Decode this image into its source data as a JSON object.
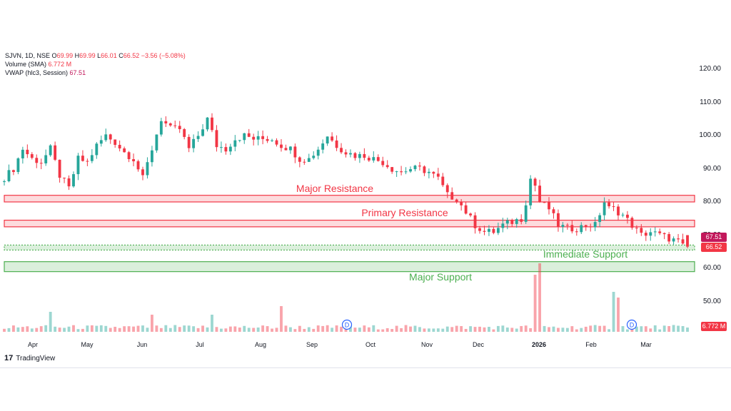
{
  "legend": {
    "symbol": "SJVN, 1D, NSE",
    "o_label": "O",
    "o": "69.99",
    "h_label": "H",
    "h": "69.99",
    "l_label": "L",
    "l": "66.01",
    "c_label": "C",
    "c": "66.52",
    "change": "−3.56 (−5.08%)",
    "volume_label": "Volume (SMA)",
    "volume_value": "6.772 M",
    "vwap_label": "VWAP (hlc3, Session)",
    "vwap_value": "67.51"
  },
  "price_tags": {
    "vwap": "67.51",
    "close": "66.52",
    "volume": "6.772 M"
  },
  "annotations": {
    "major_resistance": "Major Resistance",
    "primary_resistance": "Primary Resistance",
    "immediate_support": "Immediate Support",
    "major_support": "Major Support"
  },
  "events": {
    "dividend_marker": "D"
  },
  "brand": {
    "name": "TradingView",
    "logo_text": "17"
  },
  "colors": {
    "up": "#26a69a",
    "down": "#f23645",
    "resistance": "#f23645",
    "support": "#4caf50"
  },
  "chart_data": {
    "type": "candlestick",
    "y_ticks": [
      "120.00",
      "110.00",
      "100.00",
      "90.00",
      "80.00",
      "70.00",
      "60.00",
      "50.00"
    ],
    "x_ticks": [
      "Apr",
      "May",
      "Jun",
      "Jul",
      "Aug",
      "Sep",
      "Oct",
      "Nov",
      "Dec",
      "2026",
      "Feb",
      "Mar"
    ],
    "ylim": [
      45,
      124
    ],
    "price_path": [
      [
        0,
        86
      ],
      [
        3,
        90
      ],
      [
        5,
        96
      ],
      [
        7,
        93
      ],
      [
        9,
        92
      ],
      [
        11,
        96
      ],
      [
        13,
        88
      ],
      [
        15,
        84
      ],
      [
        17,
        93
      ],
      [
        19,
        92
      ],
      [
        21,
        97
      ],
      [
        23,
        100
      ],
      [
        25,
        98
      ],
      [
        27,
        95
      ],
      [
        29,
        93
      ],
      [
        31,
        87
      ],
      [
        33,
        96
      ],
      [
        35,
        105
      ],
      [
        37,
        102
      ],
      [
        39,
        102
      ],
      [
        41,
        96
      ],
      [
        43,
        100
      ],
      [
        45,
        105
      ],
      [
        47,
        97
      ],
      [
        49,
        96
      ],
      [
        51,
        99
      ],
      [
        53,
        100
      ],
      [
        55,
        99
      ],
      [
        57,
        99
      ],
      [
        59,
        99
      ],
      [
        61,
        97
      ],
      [
        63,
        96
      ],
      [
        65,
        93
      ],
      [
        67,
        93
      ],
      [
        69,
        96
      ],
      [
        71,
        100
      ],
      [
        73,
        97
      ],
      [
        75,
        95
      ],
      [
        77,
        94
      ],
      [
        79,
        94
      ],
      [
        81,
        93
      ],
      [
        83,
        92
      ],
      [
        85,
        90
      ],
      [
        87,
        89
      ],
      [
        89,
        90
      ],
      [
        91,
        90
      ],
      [
        93,
        89
      ],
      [
        95,
        87
      ],
      [
        97,
        82
      ],
      [
        99,
        81
      ],
      [
        101,
        77
      ],
      [
        103,
        73
      ],
      [
        105,
        71
      ],
      [
        107,
        71
      ],
      [
        109,
        73
      ],
      [
        111,
        74
      ],
      [
        113,
        75
      ],
      [
        114,
        80
      ],
      [
        115,
        87
      ],
      [
        116,
        85
      ],
      [
        117,
        80
      ],
      [
        119,
        78
      ],
      [
        121,
        73
      ],
      [
        123,
        72
      ],
      [
        125,
        72
      ],
      [
        127,
        73
      ],
      [
        129,
        73
      ],
      [
        131,
        80
      ],
      [
        132,
        78
      ],
      [
        133,
        78
      ],
      [
        135,
        76
      ],
      [
        137,
        73
      ],
      [
        139,
        70
      ],
      [
        141,
        71
      ],
      [
        143,
        70
      ],
      [
        145,
        69
      ],
      [
        147,
        68
      ],
      [
        148,
        66.52
      ]
    ],
    "volume_spikes": [
      [
        10,
        3.5
      ],
      [
        32,
        3.0
      ],
      [
        45,
        3.0
      ],
      [
        60,
        4.5
      ],
      [
        115,
        10
      ],
      [
        116,
        12
      ],
      [
        132,
        7
      ],
      [
        133,
        6
      ]
    ],
    "levels": [
      {
        "name": "Major Resistance",
        "low": 80.0,
        "high": 82.0
      },
      {
        "name": "Primary Resistance",
        "low": 72.5,
        "high": 74.5
      },
      {
        "name": "Immediate Support",
        "low": 65.5,
        "high": 67.0
      },
      {
        "name": "Major Support",
        "low": 59.0,
        "high": 62.0
      }
    ],
    "last": {
      "open": 69.99,
      "high": 69.99,
      "low": 66.01,
      "close": 66.52,
      "vwap": 67.51
    },
    "grid": false
  }
}
